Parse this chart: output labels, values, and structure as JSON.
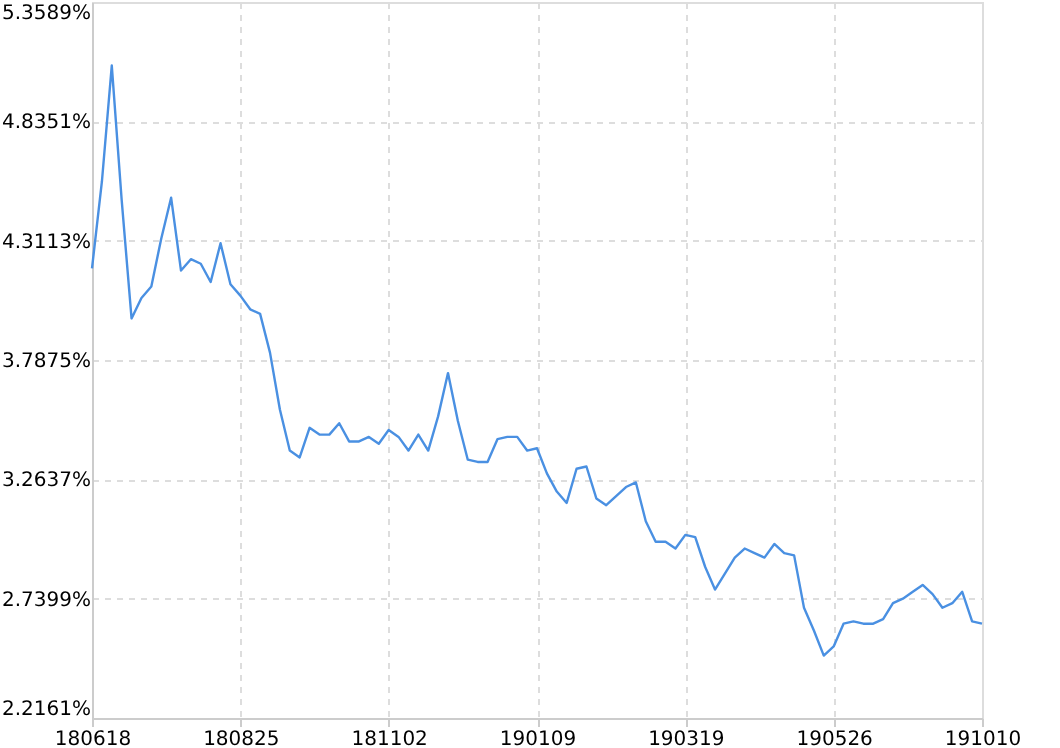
{
  "chart_data": {
    "type": "line",
    "categories": [
      "180618",
      null,
      null,
      null,
      null,
      null,
      null,
      null,
      null,
      null,
      null,
      null,
      null,
      null,
      null,
      "180825",
      null,
      null,
      null,
      null,
      null,
      null,
      null,
      null,
      null,
      null,
      null,
      null,
      null,
      null,
      "181102",
      null,
      null,
      null,
      null,
      null,
      null,
      null,
      null,
      null,
      null,
      null,
      null,
      null,
      null,
      "190109",
      null,
      null,
      null,
      null,
      null,
      null,
      null,
      null,
      null,
      null,
      null,
      null,
      null,
      null,
      "190319",
      null,
      null,
      null,
      null,
      null,
      null,
      null,
      null,
      null,
      null,
      null,
      null,
      null,
      null,
      "190526",
      null,
      null,
      null,
      null,
      null,
      null,
      null,
      null,
      null,
      null,
      null,
      null,
      null,
      null,
      "191010"
    ],
    "series": [
      {
        "color": "#4a90e2",
        "values": [
          4.19,
          4.57,
          5.08,
          4.49,
          3.97,
          4.06,
          4.11,
          4.32,
          4.5,
          4.18,
          4.23,
          4.21,
          4.13,
          4.3,
          4.12,
          4.07,
          4.01,
          3.99,
          3.82,
          3.57,
          3.39,
          3.36,
          3.49,
          3.46,
          3.46,
          3.51,
          3.43,
          3.43,
          3.45,
          3.42,
          3.48,
          3.45,
          3.39,
          3.46,
          3.39,
          3.54,
          3.73,
          3.52,
          3.35,
          3.34,
          3.34,
          3.44,
          3.45,
          3.45,
          3.39,
          3.4,
          3.29,
          3.21,
          3.16,
          3.31,
          3.32,
          3.18,
          3.15,
          3.19,
          3.23,
          3.25,
          3.08,
          2.99,
          2.99,
          2.96,
          3.02,
          3.01,
          2.88,
          2.78,
          2.85,
          2.92,
          2.96,
          2.94,
          2.92,
          2.98,
          2.94,
          2.93,
          2.7,
          2.6,
          2.49,
          2.53,
          2.63,
          2.64,
          2.63,
          2.63,
          2.65,
          2.72,
          2.74,
          2.77,
          2.8,
          2.76,
          2.7,
          2.72,
          2.77,
          2.64,
          2.63
        ]
      }
    ],
    "ylim": [
      2.2161,
      5.3589
    ],
    "yticks": [
      {
        "value": 2.2161,
        "label": "2.2161%"
      },
      {
        "value": 2.7399,
        "label": "2.7399%"
      },
      {
        "value": 3.2637,
        "label": "3.2637%"
      },
      {
        "value": 3.7875,
        "label": "3.7875%"
      },
      {
        "value": 4.3113,
        "label": "4.3113%"
      },
      {
        "value": 4.8351,
        "label": "4.8351%"
      },
      {
        "value": 5.3589,
        "label": "5.3589%"
      }
    ],
    "grid": true,
    "line_style": "solid",
    "marker": "none"
  }
}
